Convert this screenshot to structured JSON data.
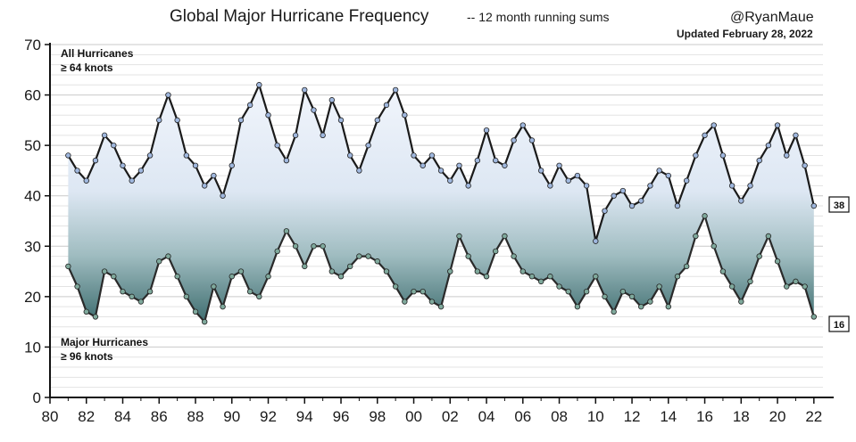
{
  "chart_data": {
    "type": "line",
    "title": "Global Major Hurricane Frequency",
    "subtitle": "-- 12 month running sums",
    "credit": "@RyanMaue",
    "updated": "Updated February 28, 2022",
    "x_ticks": [
      "80",
      "82",
      "84",
      "86",
      "88",
      "90",
      "92",
      "94",
      "96",
      "98",
      "00",
      "02",
      "04",
      "06",
      "08",
      "10",
      "12",
      "14",
      "16",
      "18",
      "20",
      "22"
    ],
    "y_ticks": [
      "0",
      "10",
      "20",
      "30",
      "40",
      "50",
      "60",
      "70"
    ],
    "ylim": [
      0,
      70
    ],
    "xlim": [
      1980,
      2022.5
    ],
    "grid": "horizontal",
    "x": [
      1981.0,
      1981.5,
      1982.0,
      1982.5,
      1983.0,
      1983.5,
      1984.0,
      1984.5,
      1985.0,
      1985.5,
      1986.0,
      1986.5,
      1987.0,
      1987.5,
      1988.0,
      1988.5,
      1989.0,
      1989.5,
      1990.0,
      1990.5,
      1991.0,
      1991.5,
      1992.0,
      1992.5,
      1993.0,
      1993.5,
      1994.0,
      1994.5,
      1995.0,
      1995.5,
      1996.0,
      1996.5,
      1997.0,
      1997.5,
      1998.0,
      1998.5,
      1999.0,
      1999.5,
      2000.0,
      2000.5,
      2001.0,
      2001.5,
      2002.0,
      2002.5,
      2003.0,
      2003.5,
      2004.0,
      2004.5,
      2005.0,
      2005.5,
      2006.0,
      2006.5,
      2007.0,
      2007.5,
      2008.0,
      2008.5,
      2009.0,
      2009.5,
      2010.0,
      2010.5,
      2011.0,
      2011.5,
      2012.0,
      2012.5,
      2013.0,
      2013.5,
      2014.0,
      2014.5,
      2015.0,
      2015.5,
      2016.0,
      2016.5,
      2017.0,
      2017.5,
      2018.0,
      2018.5,
      2019.0,
      2019.5,
      2020.0,
      2020.5,
      2021.0,
      2021.5,
      2022.0
    ],
    "series": [
      {
        "name": "All Hurricanes",
        "label_line1": "All Hurricanes",
        "label_line2": "≥ 64 knots",
        "end_label": "38",
        "color": "#1a1a1a",
        "marker_color": "#9fb7de",
        "values": [
          48,
          45,
          43,
          47,
          52,
          50,
          46,
          43,
          45,
          48,
          55,
          60,
          55,
          48,
          46,
          42,
          44,
          40,
          46,
          55,
          58,
          62,
          56,
          50,
          47,
          52,
          61,
          57,
          52,
          59,
          55,
          48,
          45,
          50,
          55,
          58,
          61,
          56,
          48,
          46,
          48,
          45,
          43,
          46,
          42,
          47,
          53,
          47,
          46,
          51,
          54,
          51,
          45,
          42,
          46,
          43,
          44,
          42,
          31,
          37,
          40,
          41,
          38,
          39,
          42,
          45,
          44,
          38,
          43,
          48,
          52,
          54,
          48,
          42,
          39,
          42,
          47,
          50,
          54,
          48,
          52,
          46,
          38
        ]
      },
      {
        "name": "Major Hurricanes",
        "label_line1": "Major Hurricanes",
        "label_line2": "≥ 96 knots",
        "end_label": "16",
        "color": "#2a2a2a",
        "marker_color": "#7fa99c",
        "values": [
          26,
          22,
          17,
          16,
          25,
          24,
          21,
          20,
          19,
          21,
          27,
          28,
          24,
          20,
          17,
          15,
          22,
          18,
          24,
          25,
          21,
          20,
          24,
          29,
          33,
          30,
          26,
          30,
          30,
          25,
          24,
          26,
          28,
          28,
          27,
          25,
          22,
          19,
          21,
          21,
          19,
          18,
          25,
          32,
          28,
          25,
          24,
          29,
          32,
          28,
          25,
          24,
          23,
          24,
          22,
          21,
          18,
          21,
          24,
          20,
          17,
          21,
          20,
          18,
          19,
          22,
          18,
          24,
          26,
          32,
          36,
          30,
          25,
          22,
          19,
          23,
          28,
          32,
          27,
          22,
          23,
          22,
          16
        ]
      }
    ]
  }
}
